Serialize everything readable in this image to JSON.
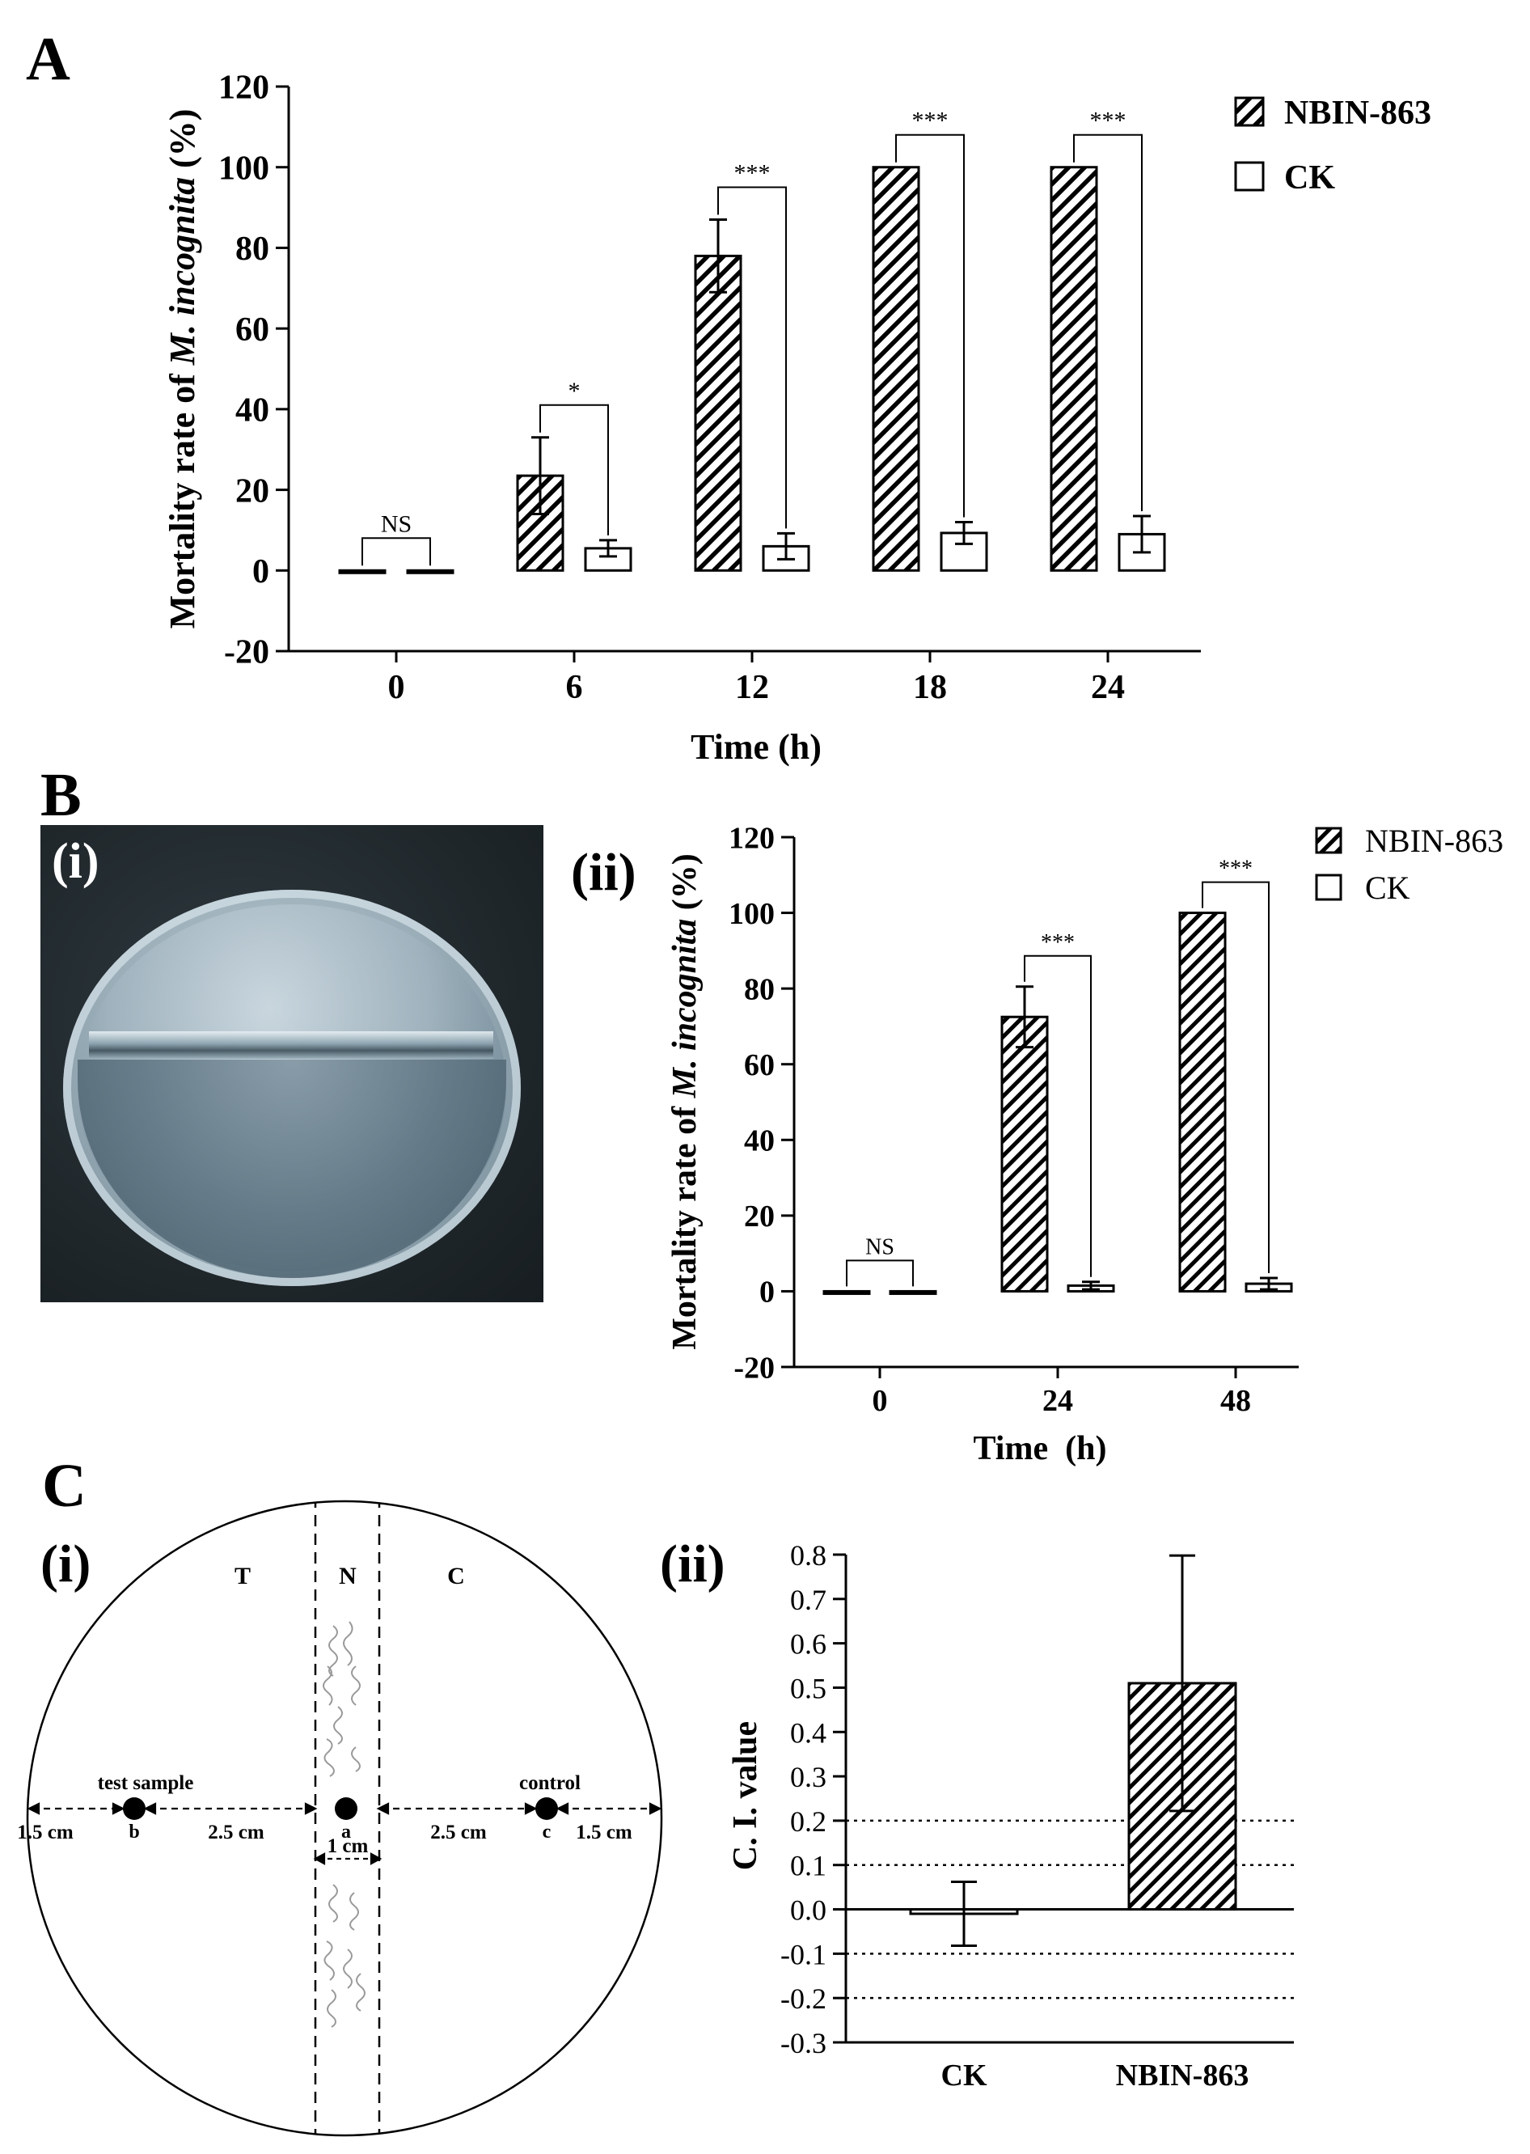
{
  "panels": {
    "A": "A",
    "B": "B",
    "C": "C",
    "B_i": "(i)",
    "B_ii": "(ii)",
    "C_i": "(i)",
    "C_ii": "(ii)"
  },
  "colors": {
    "bar_edge": "#000000",
    "ck_fill": "#ffffff",
    "hatch": "#000000"
  },
  "chart_data": [
    {
      "id": "A",
      "type": "bar",
      "ylabel_prefix": "Mortality rate of ",
      "ylabel_species": "M. incognita",
      "ylabel_suffix": " (%)",
      "xlabel": "Time (h)",
      "categories": [
        "0",
        "6",
        "12",
        "18",
        "24"
      ],
      "yticks": [
        "-20",
        "0",
        "20",
        "40",
        "60",
        "80",
        "100",
        "120"
      ],
      "ylim": [
        -20,
        120
      ],
      "series": [
        {
          "name": "NBIN-863",
          "values": [
            0,
            23.5,
            78,
            100,
            100
          ],
          "errors": [
            0,
            9.5,
            9,
            0,
            0
          ],
          "hatched": true
        },
        {
          "name": "CK",
          "values": [
            0,
            5.5,
            6,
            9.3,
            9
          ],
          "errors": [
            0,
            2,
            3.2,
            2.7,
            4.5
          ],
          "hatched": false
        }
      ],
      "significance": [
        "NS",
        "*",
        "***",
        "***",
        "***"
      ],
      "legend": [
        "NBIN-863",
        "CK"
      ]
    },
    {
      "id": "B_ii",
      "type": "bar",
      "ylabel_prefix": "Mortality rate of ",
      "ylabel_species": "M. incognita",
      "ylabel_suffix": " (%)",
      "xlabel": "Time  (h)",
      "categories": [
        "0",
        "24",
        "48"
      ],
      "yticks": [
        "-20",
        "0",
        "20",
        "40",
        "60",
        "80",
        "100",
        "120"
      ],
      "ylim": [
        -20,
        120
      ],
      "series": [
        {
          "name": "NBIN-863",
          "values": [
            0,
            72.5,
            100
          ],
          "errors": [
            0,
            8,
            0
          ],
          "hatched": true
        },
        {
          "name": "CK",
          "values": [
            0,
            1.5,
            2
          ],
          "errors": [
            0,
            1,
            1.5
          ],
          "hatched": false
        }
      ],
      "significance": [
        "NS",
        "***",
        "***"
      ],
      "legend": [
        "NBIN-863",
        "CK"
      ]
    },
    {
      "id": "C_ii",
      "type": "bar",
      "ylabel": "C. I. value",
      "categories": [
        "CK",
        "NBIN-863"
      ],
      "yticks": [
        "-0.3",
        "-0.2",
        "-0.1",
        "0.0",
        "0.1",
        "0.2",
        "0.3",
        "0.4",
        "0.5",
        "0.6",
        "0.7",
        "0.8"
      ],
      "ylim": [
        -0.3,
        0.8
      ],
      "values": [
        -0.01,
        0.51
      ],
      "errors": [
        0.072,
        0.288
      ],
      "hatched": [
        false,
        true
      ],
      "reference_lines": [
        -0.2,
        -0.1,
        0.1,
        0.2
      ]
    }
  ],
  "diagram": {
    "zones": [
      "T",
      "N",
      "C"
    ],
    "test_label": "test sample",
    "control_label": "control",
    "point_a": "a",
    "point_b": "b",
    "point_c": "c",
    "dist_edge_left": "1.5 cm",
    "dist_mid_left": "2.5 cm",
    "dist_mid_right": "2.5 cm",
    "dist_edge_right": "1.5 cm",
    "dist_center": "1 cm"
  }
}
